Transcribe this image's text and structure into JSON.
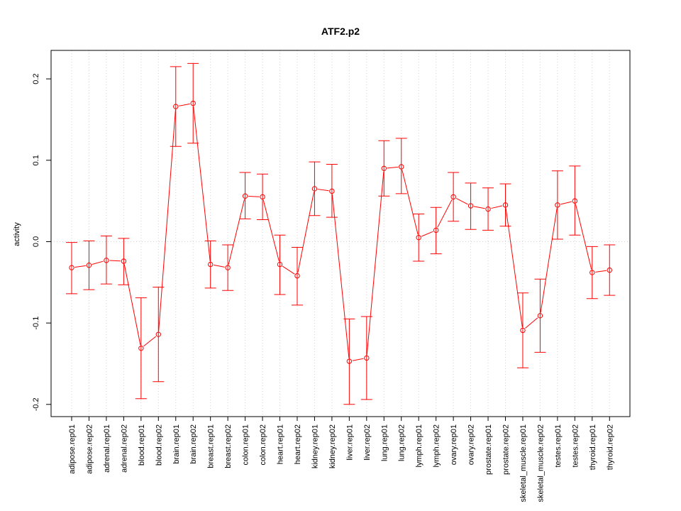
{
  "chart_data": {
    "type": "line",
    "title": "ATF2.p2",
    "xlabel": "",
    "ylabel": "activity",
    "ylim": [
      -0.215,
      0.235
    ],
    "yticks": [
      -0.2,
      -0.1,
      0.0,
      0.1,
      0.2
    ],
    "ytick_labels": [
      "-0.2",
      "-0.1",
      "0.0",
      "0.1",
      "0.2"
    ],
    "grid": true,
    "series_color": "#ff0000",
    "grid_color": "#d3d3d3",
    "categories": [
      "adipose.rep01",
      "adipose.rep02",
      "adrenal.rep01",
      "adrenal.rep02",
      "blood.rep01",
      "blood.rep02",
      "brain.rep01",
      "brain.rep02",
      "breast.rep01",
      "breast.rep02",
      "colon.rep01",
      "colon.rep02",
      "heart.rep01",
      "heart.rep02",
      "kidney.rep01",
      "kidney.rep02",
      "liver.rep01",
      "liver.rep02",
      "lung.rep01",
      "lung.rep02",
      "lymph.rep01",
      "lymph.rep02",
      "ovary.rep01",
      "ovary.rep02",
      "prostate.rep01",
      "prostate.rep02",
      "skeletal_muscle.rep01",
      "skeletal_muscle.rep02",
      "testes.rep01",
      "testes.rep02",
      "thyroid.rep01",
      "thyroid.rep02"
    ],
    "values": [
      -0.032,
      -0.029,
      -0.023,
      -0.024,
      -0.131,
      -0.114,
      0.166,
      0.17,
      -0.028,
      -0.032,
      0.056,
      0.055,
      -0.028,
      -0.042,
      0.065,
      0.062,
      -0.147,
      -0.143,
      0.09,
      0.092,
      0.005,
      0.014,
      0.055,
      0.044,
      0.04,
      0.045,
      -0.109,
      -0.091,
      0.045,
      0.05,
      -0.038,
      -0.035
    ],
    "upper": [
      -0.001,
      0.001,
      0.007,
      0.004,
      -0.069,
      -0.056,
      0.215,
      0.219,
      0.001,
      -0.004,
      0.085,
      0.083,
      0.008,
      -0.007,
      0.098,
      0.095,
      -0.095,
      -0.092,
      0.124,
      0.127,
      0.034,
      0.042,
      0.085,
      0.072,
      0.066,
      0.071,
      -0.063,
      -0.046,
      0.087,
      0.093,
      -0.006,
      -0.004
    ],
    "lower": [
      -0.064,
      -0.059,
      -0.052,
      -0.053,
      -0.193,
      -0.172,
      0.117,
      0.121,
      -0.057,
      -0.06,
      0.028,
      0.027,
      -0.065,
      -0.078,
      0.032,
      0.03,
      -0.2,
      -0.194,
      0.056,
      0.059,
      -0.024,
      -0.015,
      0.025,
      0.015,
      0.014,
      0.019,
      -0.155,
      -0.136,
      0.003,
      0.008,
      -0.07,
      -0.066
    ]
  }
}
